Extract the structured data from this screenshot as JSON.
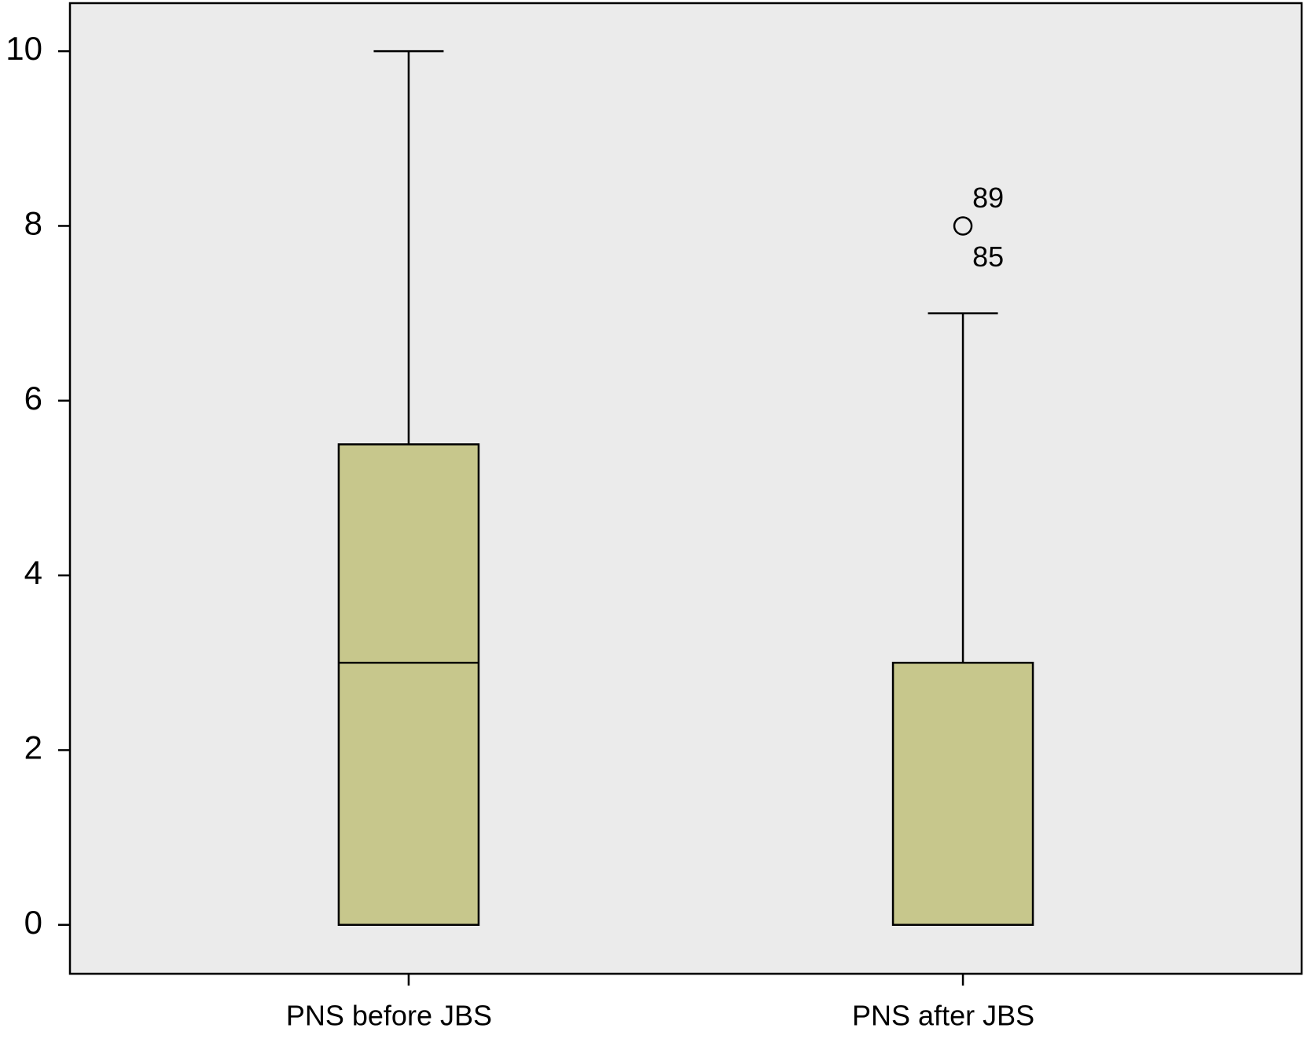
{
  "chart_data": {
    "type": "box",
    "categories": [
      "PNS before JBS",
      "PNS after JBS"
    ],
    "boxes": [
      {
        "min": 0,
        "q1": 0,
        "median": 3,
        "q3": 5.5,
        "max": 10,
        "outliers": []
      },
      {
        "min": 0,
        "q1": 0,
        "median": 0,
        "q3": 3,
        "max": 7,
        "outliers": [
          {
            "value": 8,
            "labels": [
              "89",
              "85"
            ]
          }
        ]
      }
    ],
    "color": "#c7c78c",
    "background": "#ebebeb",
    "ylim": [
      -0.56,
      10.55
    ],
    "yticks": [
      0,
      2,
      4,
      6,
      8,
      10
    ],
    "grid": false
  }
}
